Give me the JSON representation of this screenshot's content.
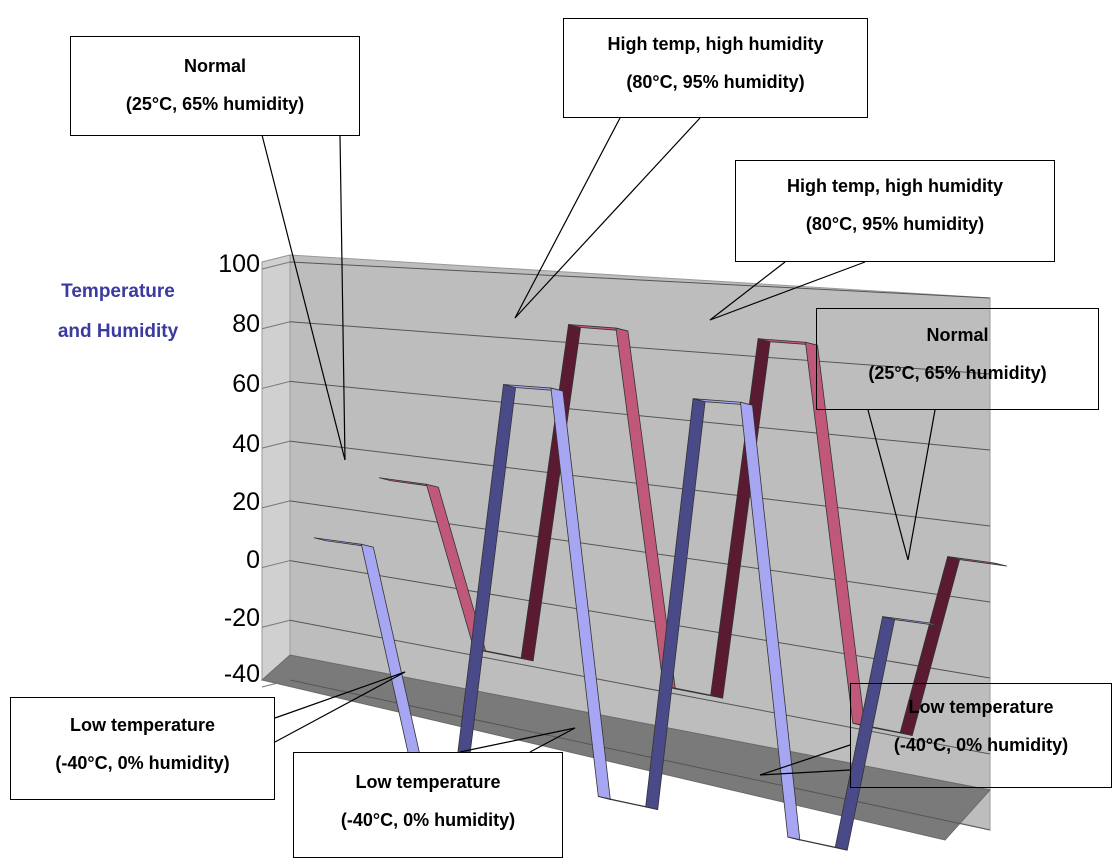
{
  "chart_data": {
    "type": "line",
    "ylabel_lines": [
      "Temperature",
      "and Humidity"
    ],
    "yticks": [
      "100",
      "80",
      "60",
      "40",
      "20",
      "0",
      "-20",
      "-40"
    ],
    "ylim": [
      -40,
      100
    ],
    "grid": true,
    "series": [
      {
        "color": "#c0587a",
        "dark_color": "#5a1a32",
        "values": [
          25,
          25,
          -25,
          -25,
          80,
          80,
          -25,
          -25,
          80,
          80,
          -25,
          -25,
          25,
          25
        ]
      },
      {
        "color": "#a6a6f2",
        "dark_color": "#4a4a88",
        "values": [
          25,
          25,
          -40,
          -40,
          80,
          80,
          -40,
          -40,
          80,
          80,
          -40,
          -40,
          25,
          25
        ]
      }
    ]
  },
  "callouts": {
    "normal_left": {
      "line1": "Normal",
      "line2": "(25°C, 65% humidity)"
    },
    "high_top": {
      "line1": "High temp, high humidity",
      "line2": "(80°C, 95% humidity)"
    },
    "high_right": {
      "line1": "High temp, high humidity",
      "line2": "(80°C, 95% humidity)"
    },
    "normal_right": {
      "line1": "Normal",
      "line2": "(25°C, 65% humidity)"
    },
    "low_left": {
      "line1": "Low temperature",
      "line2": "(-40°C, 0% humidity)"
    },
    "low_mid": {
      "line1": "Low temperature",
      "line2": "(-40°C, 0% humidity)"
    },
    "low_right": {
      "line1": "Low temperature",
      "line2": "(-40°C, 0% humidity)"
    }
  }
}
